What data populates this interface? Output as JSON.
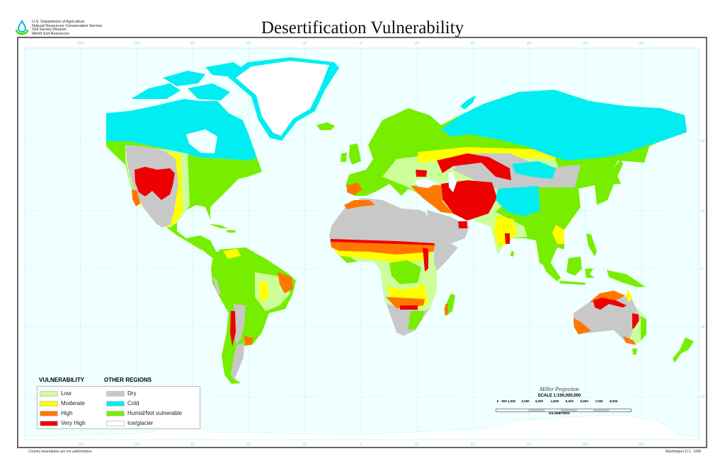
{
  "header": {
    "agency_lines": [
      "U.S. Department of Agriculture",
      "Natural Resources Conservation Service",
      "Soil Survey Division",
      "World Soil Resources"
    ],
    "title": "Desertification Vulnerability",
    "logo_icon": "water-drop-icon"
  },
  "graticule": {
    "longitude_labels": [
      "150°",
      "120°",
      "90°",
      "60°",
      "30°",
      "0°",
      "30°",
      "60°",
      "90°",
      "120°",
      "150°"
    ],
    "latitude_labels": [
      "60°",
      "30°",
      "0°",
      "30°",
      "60°"
    ]
  },
  "legend": {
    "vulnerability_title": "VULNERABILITY",
    "other_title": "OTHER REGIONS",
    "vulnerability": [
      {
        "label": "Low",
        "color": "#ccff99"
      },
      {
        "label": "Moderate",
        "color": "#ffff00"
      },
      {
        "label": "High",
        "color": "#ff7700"
      },
      {
        "label": "Very High",
        "color": "#ee0000"
      }
    ],
    "other": [
      {
        "label": "Dry",
        "color": "#c8c8c8"
      },
      {
        "label": "Cold",
        "color": "#00eef2"
      },
      {
        "label": "Humid/Not vulnerable",
        "color": "#77ee00"
      },
      {
        "label": "Ice/glacier",
        "color": "#ffffff"
      }
    ]
  },
  "scale": {
    "projection": "Miller Projection",
    "ratio": "SCALE 1:100,000,000",
    "ticks": [
      "0",
      "500",
      "1,000",
      "2,000",
      "3,000",
      "4,000",
      "5,000",
      "6,000",
      "7,000",
      "8,000"
    ],
    "units": "KILOMETERS"
  },
  "footer": {
    "disclaimer": "Country boundaries are not authoritative.",
    "place_date": "Washington D.C. 1998"
  }
}
